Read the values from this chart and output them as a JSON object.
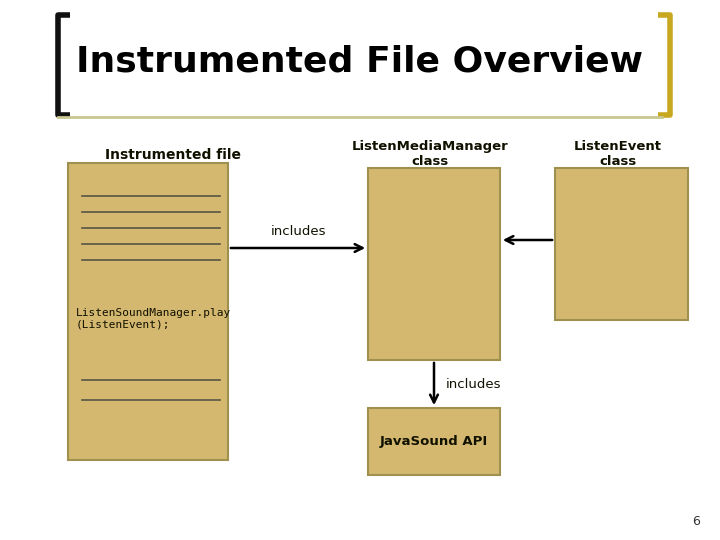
{
  "title": "Instrumented File Overview",
  "background_color": "#ffffff",
  "box_color": "#d4b870",
  "box_edge_color": "#a09050",
  "title_color": "#000000",
  "title_fontsize": 26,
  "bracket_color": "#c8a820",
  "instrumented_file_label": "Instrumented file",
  "lmm_label": "ListenMediaManager\nclass",
  "le_label": "ListenEvent\nclass",
  "jsapi_label": "JavaSound API",
  "code_text": "ListenSoundManager.play\n(ListenEvent);",
  "includes_1": "includes",
  "includes_2": "includes",
  "page_number": "6",
  "line_color": "#000000",
  "inner_line_color": "#555544",
  "label_fontsize": 9,
  "code_fontsize": 8
}
